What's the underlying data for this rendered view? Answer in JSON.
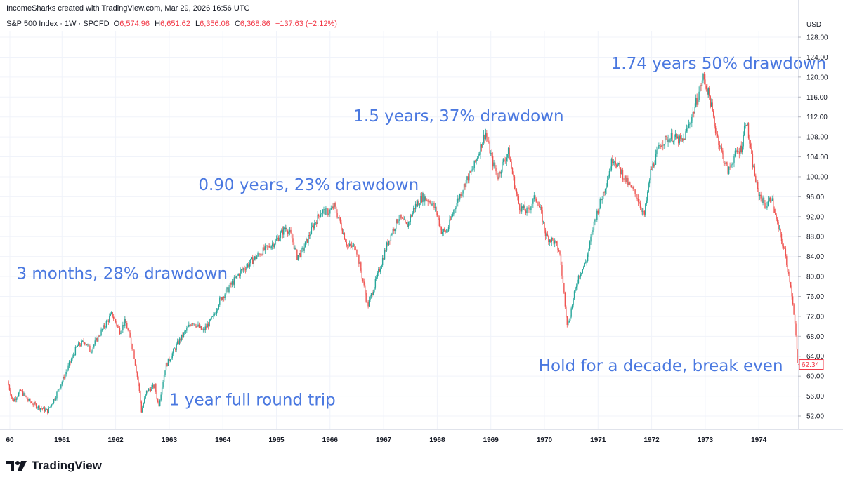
{
  "header": {
    "attribution": "IncomeSharks created with TradingView.com, Mar 29, 2026 16:56 UTC",
    "symbol": "S&P 500 Index · 1W · SPCFD",
    "open_label": "O",
    "open": "6,574.96",
    "high_label": "H",
    "high": "6,651.62",
    "low_label": "L",
    "low": "6,356.08",
    "close_label": "C",
    "close": "6,368.86",
    "change": "−137.63 (−2.12%)"
  },
  "footer": {
    "logo_text": "TradingView",
    "logo_icon": "tradingview-logo-icon"
  },
  "colors": {
    "up": "#26a69a",
    "down": "#ef5350",
    "annotation": "#4a78e0",
    "last_price": "#f23645"
  },
  "chart_data": {
    "type": "candlestick",
    "currency": "USD",
    "ylim": [
      50,
      128
    ],
    "y_ticks": [
      "52.00",
      "56.00",
      "60.00",
      "64.00",
      "68.00",
      "72.00",
      "76.00",
      "80.00",
      "84.00",
      "88.00",
      "92.00",
      "96.00",
      "100.00",
      "104.00",
      "108.00",
      "112.00",
      "116.00",
      "120.00",
      "124.00",
      "128.00"
    ],
    "x_ticks": [
      "60",
      "1961",
      "1962",
      "1963",
      "1964",
      "1965",
      "1966",
      "1967",
      "1968",
      "1969",
      "1970",
      "1971",
      "1972",
      "1973",
      "1974"
    ],
    "last_price": "62.34",
    "path": [
      [
        1960.0,
        59
      ],
      [
        1960.1,
        55
      ],
      [
        1960.25,
        57
      ],
      [
        1960.4,
        55
      ],
      [
        1960.55,
        54
      ],
      [
        1960.75,
        53
      ],
      [
        1960.9,
        56
      ],
      [
        1961.1,
        61
      ],
      [
        1961.3,
        66
      ],
      [
        1961.45,
        67
      ],
      [
        1961.55,
        65
      ],
      [
        1961.75,
        69
      ],
      [
        1961.95,
        72.5
      ],
      [
        1962.1,
        69
      ],
      [
        1962.2,
        71
      ],
      [
        1962.35,
        65
      ],
      [
        1962.45,
        58
      ],
      [
        1962.5,
        53
      ],
      [
        1962.6,
        57
      ],
      [
        1962.75,
        58
      ],
      [
        1962.82,
        54
      ],
      [
        1962.95,
        62
      ],
      [
        1963.2,
        67
      ],
      [
        1963.45,
        71
      ],
      [
        1963.65,
        69
      ],
      [
        1963.85,
        72
      ],
      [
        1963.95,
        75
      ],
      [
        1964.15,
        78
      ],
      [
        1964.35,
        81
      ],
      [
        1964.55,
        83
      ],
      [
        1964.75,
        85
      ],
      [
        1965.0,
        87
      ],
      [
        1965.2,
        90
      ],
      [
        1965.3,
        88
      ],
      [
        1965.4,
        84
      ],
      [
        1965.5,
        85
      ],
      [
        1965.7,
        90
      ],
      [
        1965.85,
        93
      ],
      [
        1966.0,
        93
      ],
      [
        1966.1,
        94
      ],
      [
        1966.2,
        91
      ],
      [
        1966.35,
        86
      ],
      [
        1966.5,
        86
      ],
      [
        1966.6,
        81
      ],
      [
        1966.72,
        74
      ],
      [
        1966.9,
        80
      ],
      [
        1967.1,
        87
      ],
      [
        1967.3,
        92
      ],
      [
        1967.45,
        90
      ],
      [
        1967.6,
        94
      ],
      [
        1967.75,
        96
      ],
      [
        1967.9,
        95
      ],
      [
        1968.0,
        93
      ],
      [
        1968.1,
        89
      ],
      [
        1968.2,
        89
      ],
      [
        1968.35,
        94
      ],
      [
        1968.55,
        99
      ],
      [
        1968.7,
        102
      ],
      [
        1968.92,
        109
      ],
      [
        1969.05,
        103
      ],
      [
        1969.15,
        100
      ],
      [
        1969.25,
        103
      ],
      [
        1969.35,
        105
      ],
      [
        1969.45,
        99
      ],
      [
        1969.55,
        94
      ],
      [
        1969.7,
        93
      ],
      [
        1969.85,
        96
      ],
      [
        1969.95,
        93
      ],
      [
        1970.05,
        88
      ],
      [
        1970.2,
        87
      ],
      [
        1970.3,
        85
      ],
      [
        1970.4,
        75
      ],
      [
        1970.45,
        70
      ],
      [
        1970.55,
        75
      ],
      [
        1970.65,
        80
      ],
      [
        1970.8,
        83
      ],
      [
        1970.95,
        91
      ],
      [
        1971.15,
        98
      ],
      [
        1971.3,
        104
      ],
      [
        1971.45,
        101
      ],
      [
        1971.55,
        99
      ],
      [
        1971.75,
        96
      ],
      [
        1971.88,
        92
      ],
      [
        1972.0,
        101
      ],
      [
        1972.2,
        107
      ],
      [
        1972.4,
        108
      ],
      [
        1972.6,
        107
      ],
      [
        1972.8,
        113
      ],
      [
        1972.98,
        120
      ],
      [
        1973.1,
        116
      ],
      [
        1973.2,
        110
      ],
      [
        1973.35,
        104
      ],
      [
        1973.45,
        101
      ],
      [
        1973.55,
        104
      ],
      [
        1973.7,
        106
      ],
      [
        1973.78,
        112
      ],
      [
        1973.88,
        104
      ],
      [
        1974.0,
        97
      ],
      [
        1974.15,
        94
      ],
      [
        1974.25,
        96
      ],
      [
        1974.35,
        91
      ],
      [
        1974.5,
        85
      ],
      [
        1974.62,
        78
      ],
      [
        1974.72,
        67
      ],
      [
        1974.75,
        62.34
      ]
    ],
    "annotations": [
      {
        "text": "3 months, 28% drawdown",
        "x": 1960.15,
        "y": 79.5,
        "anchor": "start"
      },
      {
        "text": "1 year full round trip",
        "x": 1963.0,
        "y": 54.2,
        "anchor": "start"
      },
      {
        "text": "0.90 years, 23% drawdown",
        "x": 1965.6,
        "y": 97.3,
        "anchor": "middle"
      },
      {
        "text": "1.5 years, 37% drawdown",
        "x": 1968.4,
        "y": 111.1,
        "anchor": "middle"
      },
      {
        "text": "1.74 years 50% drawdown",
        "x": 1973.25,
        "y": 121.7,
        "anchor": "middle"
      },
      {
        "text": "Hold for a decade, break even",
        "x": 1974.45,
        "y": 61.0,
        "anchor": "end"
      }
    ]
  }
}
